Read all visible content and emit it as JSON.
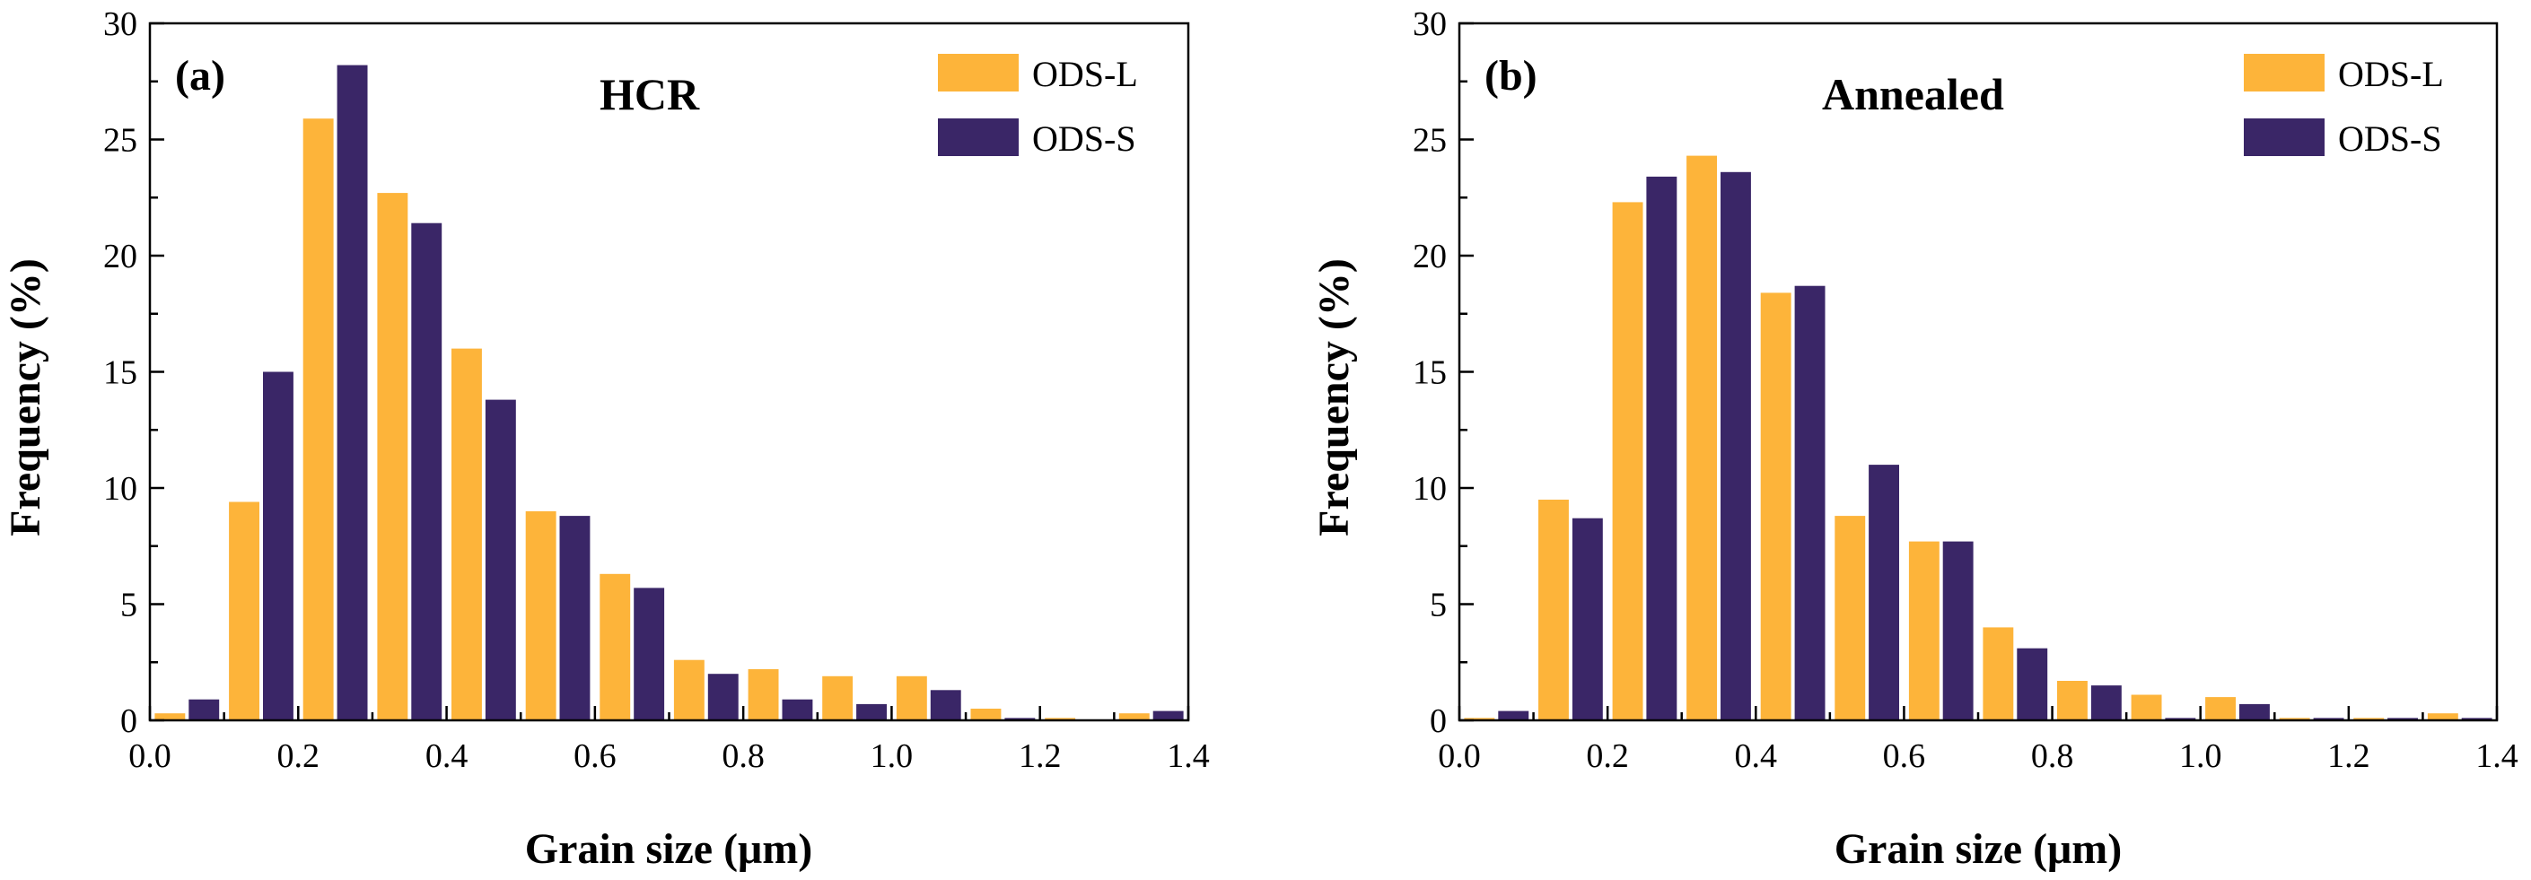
{
  "colors": {
    "ODS-L": "#FDB43A",
    "ODS-S": "#3A2667",
    "axis": "#000000"
  },
  "chart_data": [
    {
      "type": "bar",
      "panel_label": "(a)",
      "title": "HCR",
      "xlabel": "Grain size (μm)",
      "ylabel": "Frequency (%)",
      "xlim": [
        0.0,
        1.4
      ],
      "ylim": [
        0,
        30
      ],
      "xticks": [
        "0.0",
        "0.2",
        "0.4",
        "0.6",
        "0.8",
        "1.0",
        "1.2",
        "1.4"
      ],
      "yticks": [
        "0",
        "5",
        "10",
        "15",
        "20",
        "25",
        "30"
      ],
      "legend_position": "top-right",
      "categories": [
        0.05,
        0.15,
        0.25,
        0.35,
        0.45,
        0.55,
        0.65,
        0.75,
        0.85,
        0.95,
        1.05,
        1.15,
        1.25,
        1.35
      ],
      "series": [
        {
          "name": "ODS-L",
          "values": [
            0.3,
            9.4,
            25.9,
            22.7,
            16.0,
            9.0,
            6.3,
            2.6,
            2.2,
            1.9,
            1.9,
            0.5,
            0.1,
            0.3
          ]
        },
        {
          "name": "ODS-S",
          "values": [
            0.9,
            15.0,
            28.2,
            21.4,
            13.8,
            8.8,
            5.7,
            2.0,
            0.9,
            0.7,
            1.3,
            0.1,
            0.0,
            0.4
          ]
        }
      ]
    },
    {
      "type": "bar",
      "panel_label": "(b)",
      "title": "Annealed",
      "xlabel": "Grain size (μm)",
      "ylabel": "Frequency (%)",
      "xlim": [
        0.0,
        1.4
      ],
      "ylim": [
        0,
        30
      ],
      "xticks": [
        "0.0",
        "0.2",
        "0.4",
        "0.6",
        "0.8",
        "1.0",
        "1.2",
        "1.4"
      ],
      "yticks": [
        "0",
        "5",
        "10",
        "15",
        "20",
        "25",
        "30"
      ],
      "legend_position": "top-right",
      "categories": [
        0.05,
        0.15,
        0.25,
        0.35,
        0.45,
        0.55,
        0.65,
        0.75,
        0.85,
        0.95,
        1.05,
        1.15,
        1.25,
        1.35
      ],
      "series": [
        {
          "name": "ODS-L",
          "values": [
            0.1,
            9.5,
            22.3,
            24.3,
            18.4,
            8.8,
            7.7,
            4.0,
            1.7,
            1.1,
            1.0,
            0.1,
            0.1,
            0.3
          ]
        },
        {
          "name": "ODS-S",
          "values": [
            0.4,
            8.7,
            23.4,
            23.6,
            18.7,
            11.0,
            7.7,
            3.1,
            1.5,
            0.1,
            0.7,
            0.1,
            0.1,
            0.1
          ]
        }
      ]
    }
  ]
}
